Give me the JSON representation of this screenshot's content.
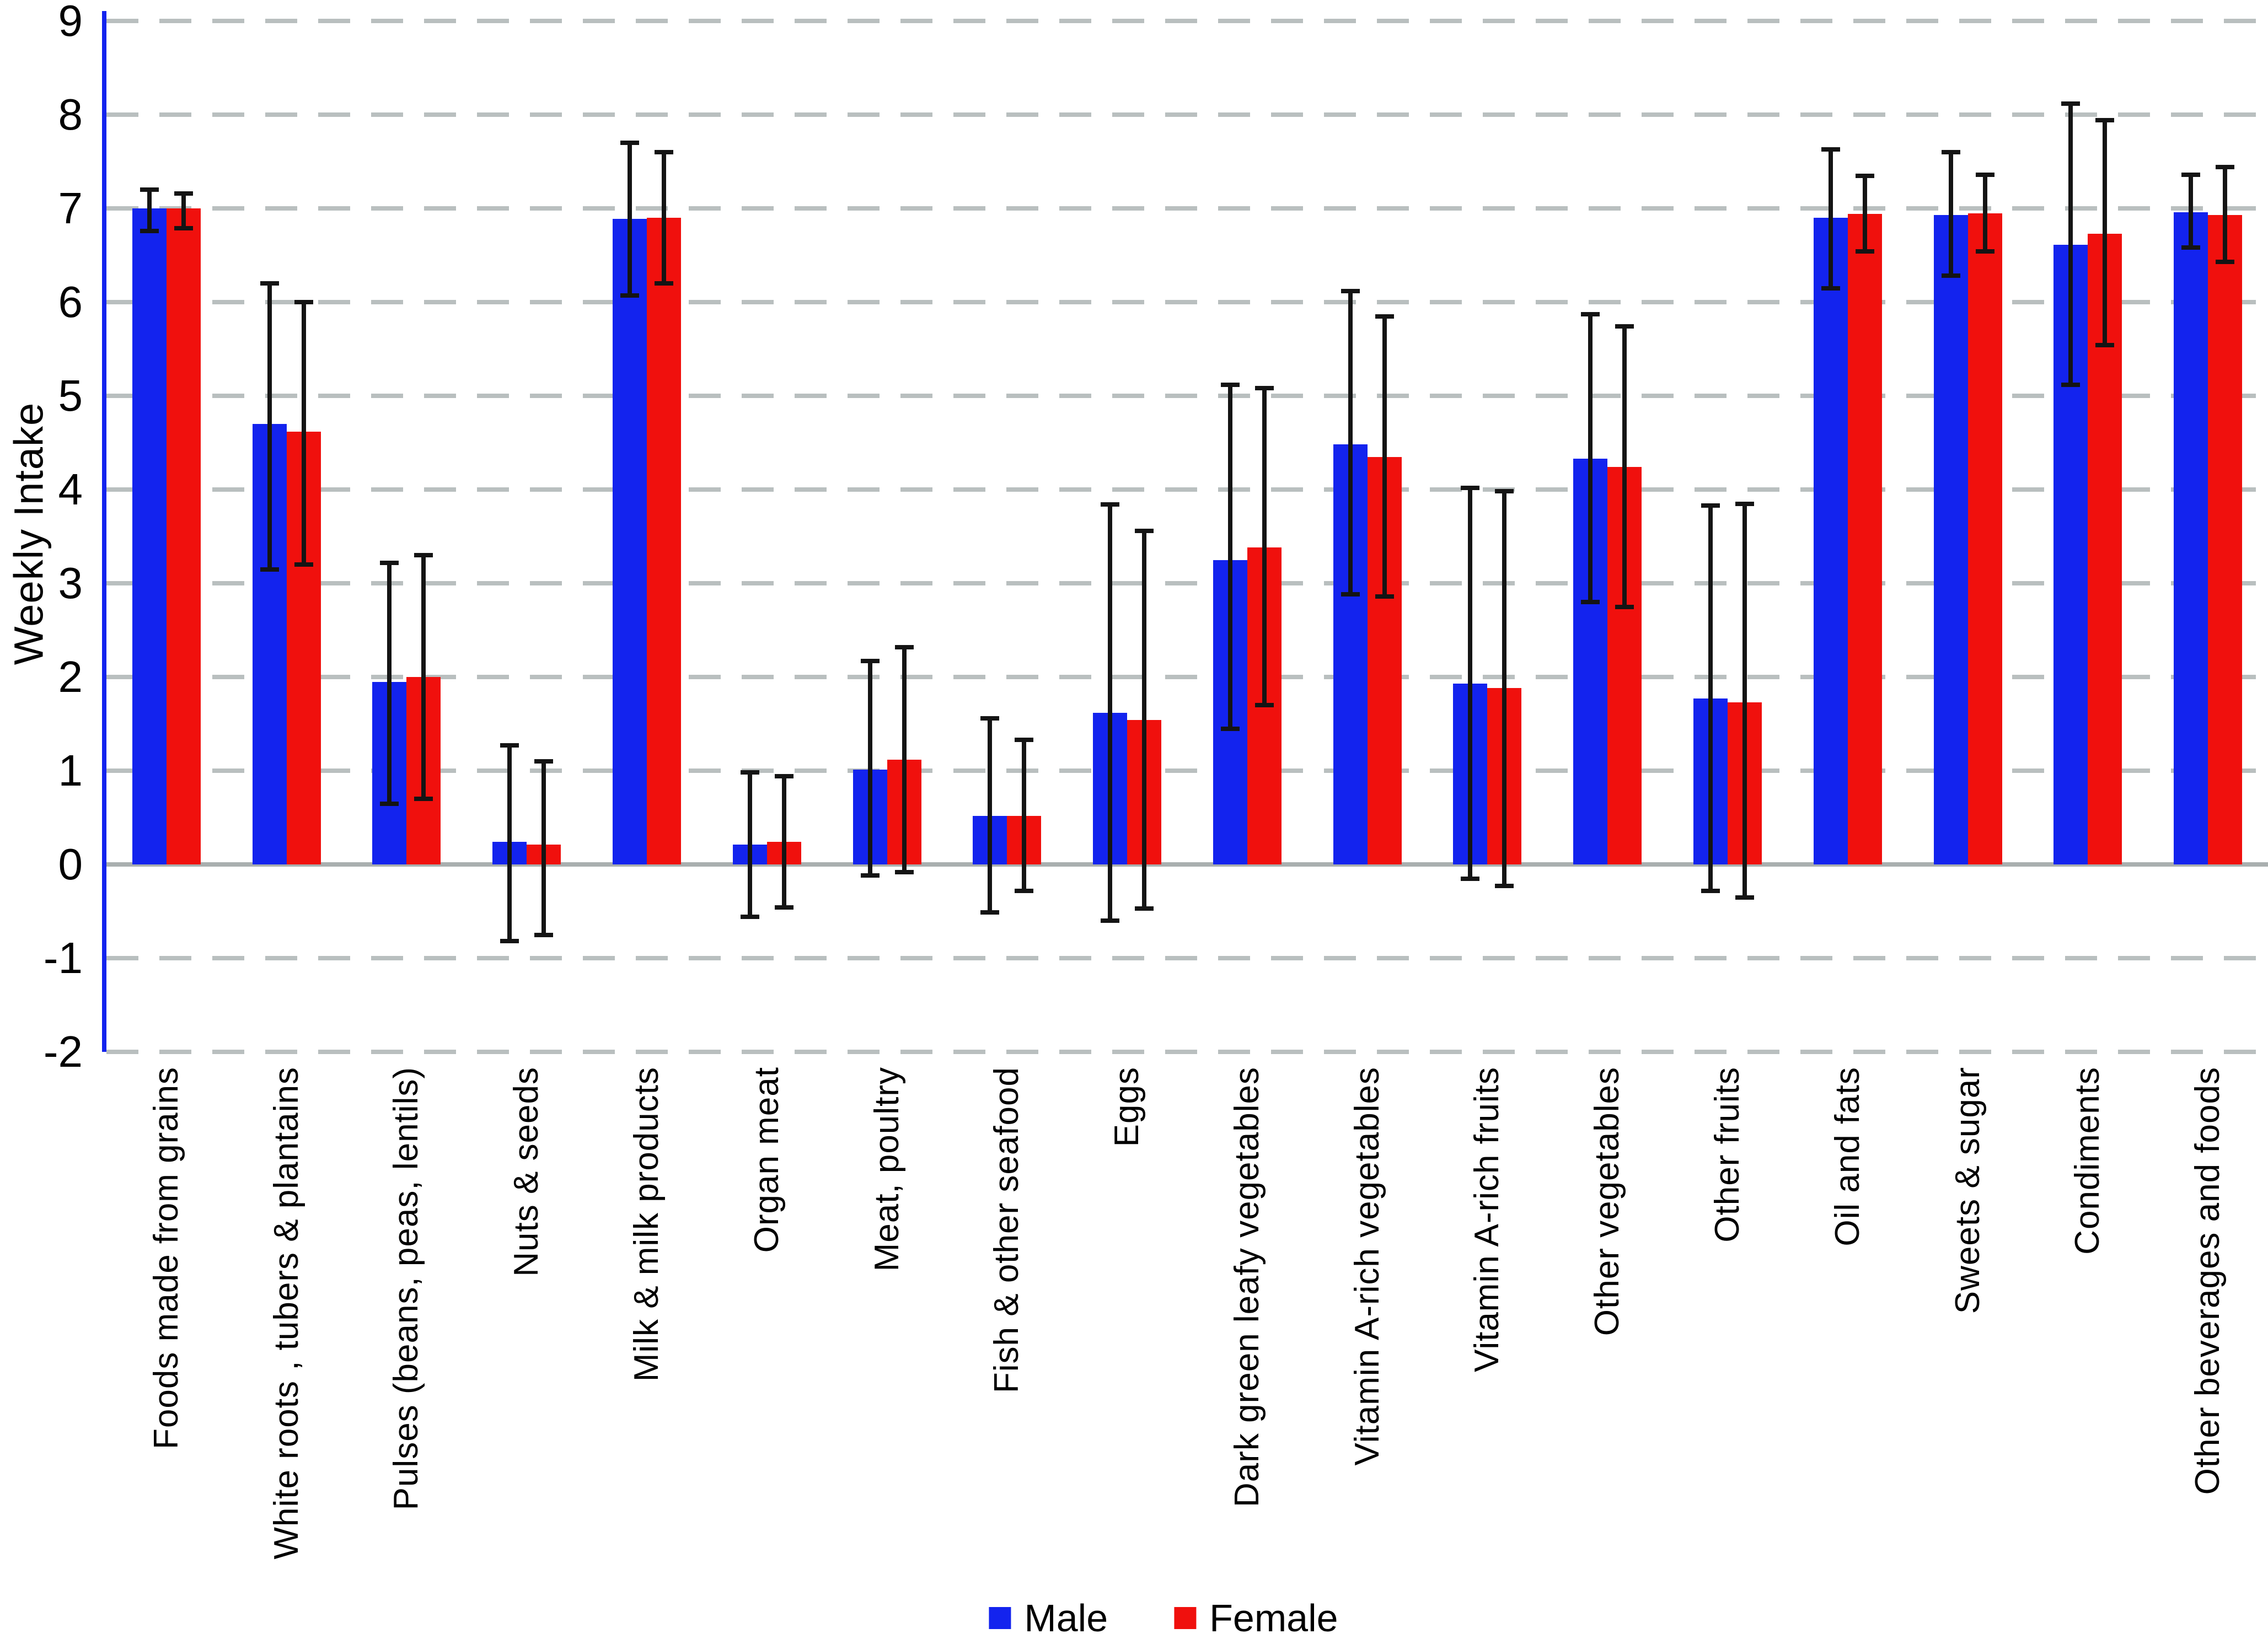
{
  "chart_data": {
    "type": "bar",
    "title": "",
    "xlabel": "",
    "ylabel": "Weekly Intake",
    "ylim": [
      -2,
      9
    ],
    "yticks": [
      9,
      8,
      7,
      6,
      5,
      4,
      3,
      2,
      1,
      0,
      -1,
      -2
    ],
    "grid": "horizontal dashed gridlines, solid zero line",
    "legend_position": "bottom-center",
    "error_bars": true,
    "categories": [
      "Foods made from grains",
      "White roots , tubers & plantains",
      "Pulses (beans, peas, lentils)",
      "Nuts & seeds",
      "Milk & milk products",
      "Organ meat",
      "Meat, poultry",
      "Fish & other seafood",
      "Eggs",
      "Dark green leafy vegetables",
      "Vitamin A-rich vegetables",
      "Vitamin A-rich fruits",
      "Other vegetables",
      "Other fruits",
      "Oil and fats",
      "Sweets & sugar",
      "Condiments",
      "Other beverages and foods"
    ],
    "series": [
      {
        "name": "Male",
        "color": "#1323ee",
        "values": [
          7.0,
          4.7,
          1.95,
          0.24,
          6.89,
          0.21,
          1.01,
          0.52,
          1.62,
          3.25,
          4.48,
          1.93,
          4.33,
          1.77,
          6.9,
          6.93,
          6.61,
          6.96
        ],
        "error_low": [
          6.76,
          3.15,
          0.65,
          -0.82,
          6.07,
          -0.56,
          -0.12,
          -0.51,
          -0.6,
          1.45,
          2.88,
          -0.15,
          2.8,
          -0.28,
          6.15,
          6.28,
          5.12,
          6.58
        ],
        "error_high": [
          7.2,
          6.2,
          3.22,
          1.27,
          7.7,
          0.98,
          2.17,
          1.56,
          3.84,
          5.12,
          6.12,
          4.02,
          5.87,
          3.83,
          7.63,
          7.6,
          8.12,
          7.36
        ]
      },
      {
        "name": "Female",
        "color": "#f0100d",
        "values": [
          7.0,
          4.62,
          2.0,
          0.21,
          6.9,
          0.24,
          1.12,
          0.52,
          1.54,
          3.38,
          4.35,
          1.88,
          4.24,
          1.73,
          6.94,
          6.95,
          6.73,
          6.93
        ],
        "error_low": [
          6.79,
          3.2,
          0.7,
          -0.75,
          6.2,
          -0.46,
          -0.08,
          -0.28,
          -0.47,
          1.7,
          2.86,
          -0.23,
          2.75,
          -0.35,
          6.54,
          6.54,
          5.54,
          6.43
        ],
        "error_high": [
          7.16,
          6.0,
          3.3,
          1.1,
          7.6,
          0.94,
          2.32,
          1.33,
          3.56,
          5.08,
          5.85,
          3.98,
          5.74,
          3.85,
          7.35,
          7.36,
          7.94,
          7.44
        ]
      }
    ],
    "colors": {
      "male_bar": "#1323ee",
      "female_bar": "#f0100d",
      "axis_spine": "#1323ee",
      "gridline_dashed": "#b9bfbf",
      "zero_line": "#a9afaf",
      "error_bar": "#141414",
      "text": "#000000"
    }
  }
}
